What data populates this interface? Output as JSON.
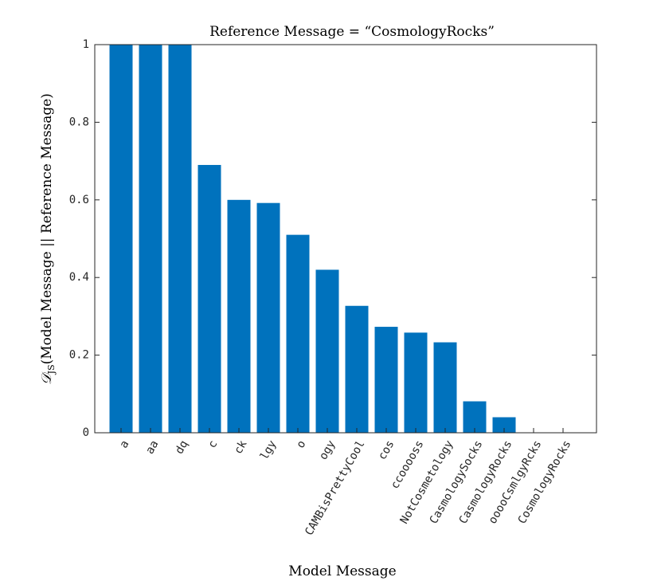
{
  "chart_data": {
    "type": "bar",
    "title": "Reference Message = “CosmologyRocks”",
    "xlabel": "Model Message",
    "ylabel_math": "𝒟",
    "ylabel_sub": "JS",
    "ylabel_rest": "(Model Message || Reference Message)",
    "categories": [
      "a",
      "aa",
      "dq",
      "c",
      "ck",
      "lgy",
      "o",
      "ogy",
      "CAMBisPrettyCool",
      "cos",
      "ccooooss",
      "NotCosmetology",
      "CasmologySocks",
      "CasmologyRocks",
      "ooooCsmlgyRcks",
      "CosmologyRocks"
    ],
    "values": [
      1.0,
      1.0,
      1.0,
      0.69,
      0.6,
      0.592,
      0.51,
      0.42,
      0.327,
      0.273,
      0.258,
      0.233,
      0.081,
      0.04,
      0.0,
      0.0
    ],
    "ylim": [
      0,
      1
    ],
    "yticks": [
      "0",
      "0.2",
      "0.4",
      "0.6",
      "0.8",
      "1"
    ],
    "grid": false,
    "bar_color": "#0072bd"
  }
}
